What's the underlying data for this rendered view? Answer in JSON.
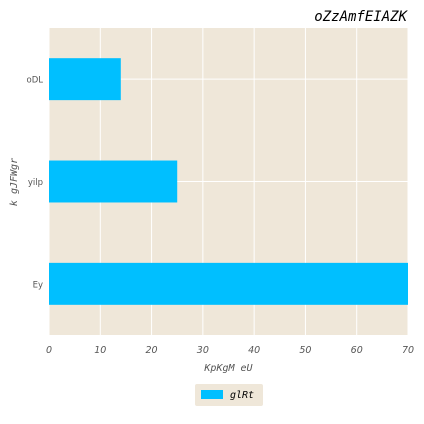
{
  "chart_data": {
    "type": "bar",
    "orientation": "horizontal",
    "title": "oZzAmfEIAZK",
    "xlabel": "KpKgM eU",
    "ylabel": "k gJFWgr",
    "categories": [
      "oDL",
      "yilp",
      "Ey"
    ],
    "series": [
      {
        "name": "glRt",
        "values": [
          14,
          25,
          70
        ]
      }
    ],
    "xlim": [
      0,
      70
    ],
    "xticks": [
      "0",
      "10",
      "20",
      "30",
      "40",
      "50",
      "60",
      "70"
    ],
    "grid": true,
    "legend_position": "bottom-center",
    "colors": {
      "bar": "#00bfff",
      "plot_background": "#efe7d9",
      "grid": "#ffffff"
    }
  }
}
